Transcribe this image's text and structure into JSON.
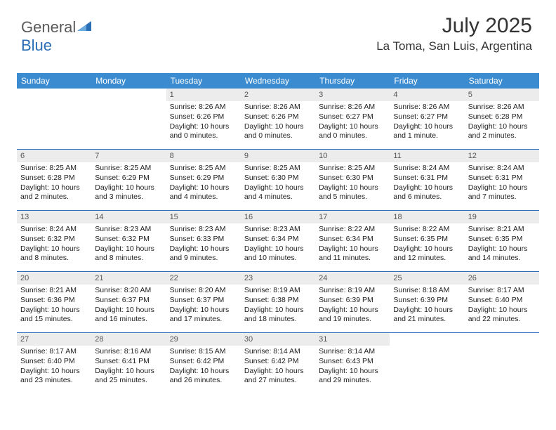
{
  "brand": {
    "part1": "General",
    "part2": "Blue"
  },
  "title": "July 2025",
  "location": "La Toma, San Luis, Argentina",
  "colors": {
    "header_bg": "#3b8bd0",
    "border": "#2a6fb5",
    "daynum_bg": "#ececec",
    "text": "#333333"
  },
  "dow": [
    "Sunday",
    "Monday",
    "Tuesday",
    "Wednesday",
    "Thursday",
    "Friday",
    "Saturday"
  ],
  "weeks": [
    [
      {
        "n": "",
        "sr": "",
        "ss": "",
        "dl": ""
      },
      {
        "n": "",
        "sr": "",
        "ss": "",
        "dl": ""
      },
      {
        "n": "1",
        "sr": "Sunrise: 8:26 AM",
        "ss": "Sunset: 6:26 PM",
        "dl": "Daylight: 10 hours and 0 minutes."
      },
      {
        "n": "2",
        "sr": "Sunrise: 8:26 AM",
        "ss": "Sunset: 6:26 PM",
        "dl": "Daylight: 10 hours and 0 minutes."
      },
      {
        "n": "3",
        "sr": "Sunrise: 8:26 AM",
        "ss": "Sunset: 6:27 PM",
        "dl": "Daylight: 10 hours and 0 minutes."
      },
      {
        "n": "4",
        "sr": "Sunrise: 8:26 AM",
        "ss": "Sunset: 6:27 PM",
        "dl": "Daylight: 10 hours and 1 minute."
      },
      {
        "n": "5",
        "sr": "Sunrise: 8:26 AM",
        "ss": "Sunset: 6:28 PM",
        "dl": "Daylight: 10 hours and 2 minutes."
      }
    ],
    [
      {
        "n": "6",
        "sr": "Sunrise: 8:25 AM",
        "ss": "Sunset: 6:28 PM",
        "dl": "Daylight: 10 hours and 2 minutes."
      },
      {
        "n": "7",
        "sr": "Sunrise: 8:25 AM",
        "ss": "Sunset: 6:29 PM",
        "dl": "Daylight: 10 hours and 3 minutes."
      },
      {
        "n": "8",
        "sr": "Sunrise: 8:25 AM",
        "ss": "Sunset: 6:29 PM",
        "dl": "Daylight: 10 hours and 4 minutes."
      },
      {
        "n": "9",
        "sr": "Sunrise: 8:25 AM",
        "ss": "Sunset: 6:30 PM",
        "dl": "Daylight: 10 hours and 4 minutes."
      },
      {
        "n": "10",
        "sr": "Sunrise: 8:25 AM",
        "ss": "Sunset: 6:30 PM",
        "dl": "Daylight: 10 hours and 5 minutes."
      },
      {
        "n": "11",
        "sr": "Sunrise: 8:24 AM",
        "ss": "Sunset: 6:31 PM",
        "dl": "Daylight: 10 hours and 6 minutes."
      },
      {
        "n": "12",
        "sr": "Sunrise: 8:24 AM",
        "ss": "Sunset: 6:31 PM",
        "dl": "Daylight: 10 hours and 7 minutes."
      }
    ],
    [
      {
        "n": "13",
        "sr": "Sunrise: 8:24 AM",
        "ss": "Sunset: 6:32 PM",
        "dl": "Daylight: 10 hours and 8 minutes."
      },
      {
        "n": "14",
        "sr": "Sunrise: 8:23 AM",
        "ss": "Sunset: 6:32 PM",
        "dl": "Daylight: 10 hours and 8 minutes."
      },
      {
        "n": "15",
        "sr": "Sunrise: 8:23 AM",
        "ss": "Sunset: 6:33 PM",
        "dl": "Daylight: 10 hours and 9 minutes."
      },
      {
        "n": "16",
        "sr": "Sunrise: 8:23 AM",
        "ss": "Sunset: 6:34 PM",
        "dl": "Daylight: 10 hours and 10 minutes."
      },
      {
        "n": "17",
        "sr": "Sunrise: 8:22 AM",
        "ss": "Sunset: 6:34 PM",
        "dl": "Daylight: 10 hours and 11 minutes."
      },
      {
        "n": "18",
        "sr": "Sunrise: 8:22 AM",
        "ss": "Sunset: 6:35 PM",
        "dl": "Daylight: 10 hours and 12 minutes."
      },
      {
        "n": "19",
        "sr": "Sunrise: 8:21 AM",
        "ss": "Sunset: 6:35 PM",
        "dl": "Daylight: 10 hours and 14 minutes."
      }
    ],
    [
      {
        "n": "20",
        "sr": "Sunrise: 8:21 AM",
        "ss": "Sunset: 6:36 PM",
        "dl": "Daylight: 10 hours and 15 minutes."
      },
      {
        "n": "21",
        "sr": "Sunrise: 8:20 AM",
        "ss": "Sunset: 6:37 PM",
        "dl": "Daylight: 10 hours and 16 minutes."
      },
      {
        "n": "22",
        "sr": "Sunrise: 8:20 AM",
        "ss": "Sunset: 6:37 PM",
        "dl": "Daylight: 10 hours and 17 minutes."
      },
      {
        "n": "23",
        "sr": "Sunrise: 8:19 AM",
        "ss": "Sunset: 6:38 PM",
        "dl": "Daylight: 10 hours and 18 minutes."
      },
      {
        "n": "24",
        "sr": "Sunrise: 8:19 AM",
        "ss": "Sunset: 6:39 PM",
        "dl": "Daylight: 10 hours and 19 minutes."
      },
      {
        "n": "25",
        "sr": "Sunrise: 8:18 AM",
        "ss": "Sunset: 6:39 PM",
        "dl": "Daylight: 10 hours and 21 minutes."
      },
      {
        "n": "26",
        "sr": "Sunrise: 8:17 AM",
        "ss": "Sunset: 6:40 PM",
        "dl": "Daylight: 10 hours and 22 minutes."
      }
    ],
    [
      {
        "n": "27",
        "sr": "Sunrise: 8:17 AM",
        "ss": "Sunset: 6:40 PM",
        "dl": "Daylight: 10 hours and 23 minutes."
      },
      {
        "n": "28",
        "sr": "Sunrise: 8:16 AM",
        "ss": "Sunset: 6:41 PM",
        "dl": "Daylight: 10 hours and 25 minutes."
      },
      {
        "n": "29",
        "sr": "Sunrise: 8:15 AM",
        "ss": "Sunset: 6:42 PM",
        "dl": "Daylight: 10 hours and 26 minutes."
      },
      {
        "n": "30",
        "sr": "Sunrise: 8:14 AM",
        "ss": "Sunset: 6:42 PM",
        "dl": "Daylight: 10 hours and 27 minutes."
      },
      {
        "n": "31",
        "sr": "Sunrise: 8:14 AM",
        "ss": "Sunset: 6:43 PM",
        "dl": "Daylight: 10 hours and 29 minutes."
      },
      {
        "n": "",
        "sr": "",
        "ss": "",
        "dl": ""
      },
      {
        "n": "",
        "sr": "",
        "ss": "",
        "dl": ""
      }
    ]
  ]
}
